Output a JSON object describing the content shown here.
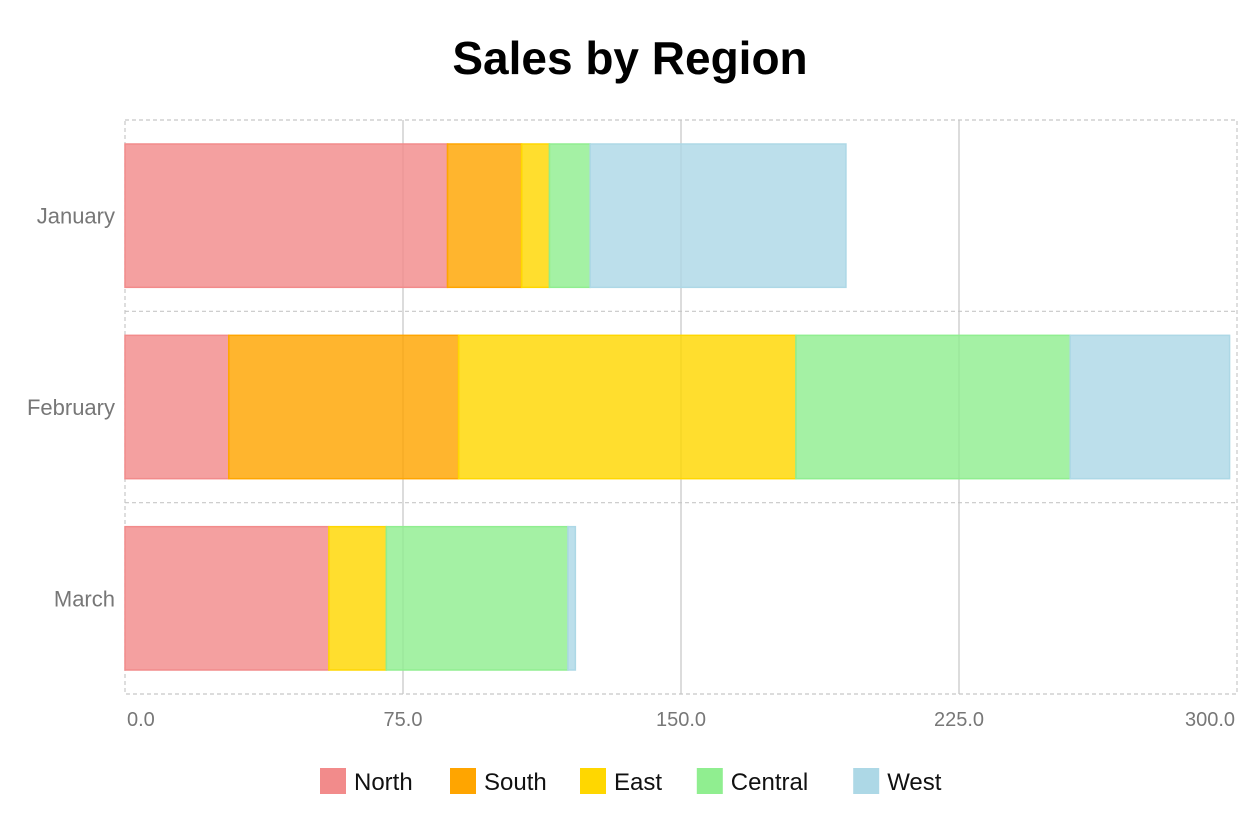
{
  "chart_data": {
    "type": "bar",
    "orientation": "horizontal",
    "stacked": true,
    "title": "Sales by Region",
    "categories": [
      "January",
      "February",
      "March"
    ],
    "series": [
      {
        "name": "North",
        "color": "#f28b8b",
        "values": [
          87,
          28,
          55
        ]
      },
      {
        "name": "South",
        "color": "#ffa500",
        "values": [
          20,
          62,
          0
        ]
      },
      {
        "name": "East",
        "color": "#ffd700",
        "values": [
          7.5,
          91,
          15.5
        ]
      },
      {
        "name": "Central",
        "color": "#90ee90",
        "values": [
          11,
          74,
          49
        ]
      },
      {
        "name": "West",
        "color": "#add8e6",
        "values": [
          69,
          43,
          2
        ]
      }
    ],
    "xlim": [
      0,
      300
    ],
    "xticks": [
      0,
      75,
      150,
      225,
      300
    ],
    "xtick_labels": [
      "0.0",
      "75.0",
      "150.0",
      "225.0",
      "300.0"
    ],
    "grid": true,
    "legend_position": "bottom"
  }
}
